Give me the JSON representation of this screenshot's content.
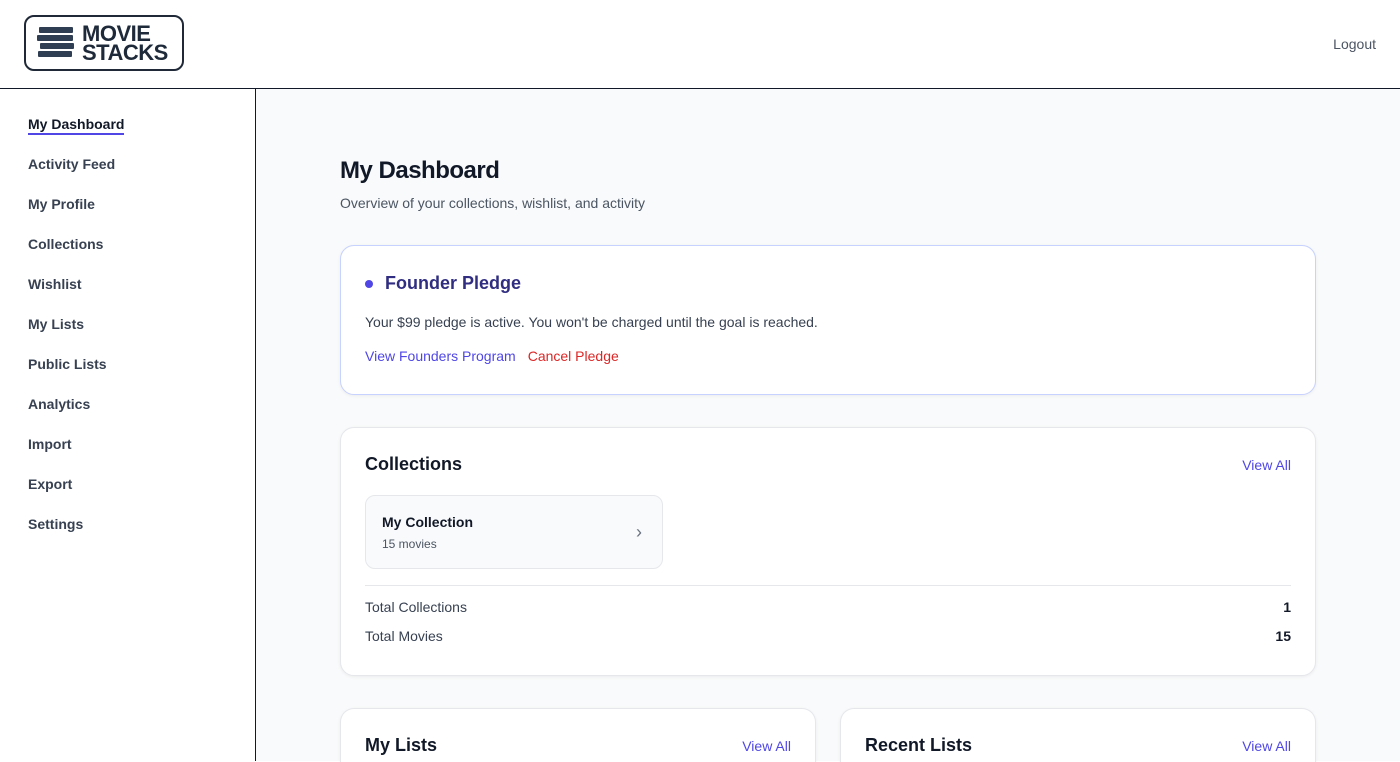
{
  "header": {
    "logo_text": [
      "MOVIE",
      "STACKS"
    ],
    "logout": "Logout"
  },
  "sidebar": {
    "items": [
      {
        "label": "My Dashboard",
        "active": true
      },
      {
        "label": "Activity Feed"
      },
      {
        "label": "My Profile"
      },
      {
        "label": "Collections"
      },
      {
        "label": "Wishlist"
      },
      {
        "label": "My Lists"
      },
      {
        "label": "Public Lists"
      },
      {
        "label": "Analytics"
      },
      {
        "label": "Import"
      },
      {
        "label": "Export"
      },
      {
        "label": "Settings"
      }
    ]
  },
  "main": {
    "title": "My Dashboard",
    "subtitle": "Overview of your collections, wishlist, and activity",
    "pledge": {
      "title": "Founder Pledge",
      "text": "Your $99 pledge is active. You won't be charged until the goal is reached.",
      "view_link": "View Founders Program",
      "cancel_link": "Cancel Pledge"
    },
    "collections": {
      "title": "Collections",
      "view_all": "View All",
      "items": [
        {
          "name": "My Collection",
          "count": "15 movies"
        }
      ],
      "stats": [
        {
          "label": "Total Collections",
          "value": "1"
        },
        {
          "label": "Total Movies",
          "value": "15"
        }
      ]
    },
    "my_lists": {
      "title": "My Lists",
      "view_all": "View All"
    },
    "recent_lists": {
      "title": "Recent Lists",
      "view_all": "View All"
    }
  },
  "colors": {
    "accent": "#4f46e5",
    "danger": "#dc2626"
  }
}
